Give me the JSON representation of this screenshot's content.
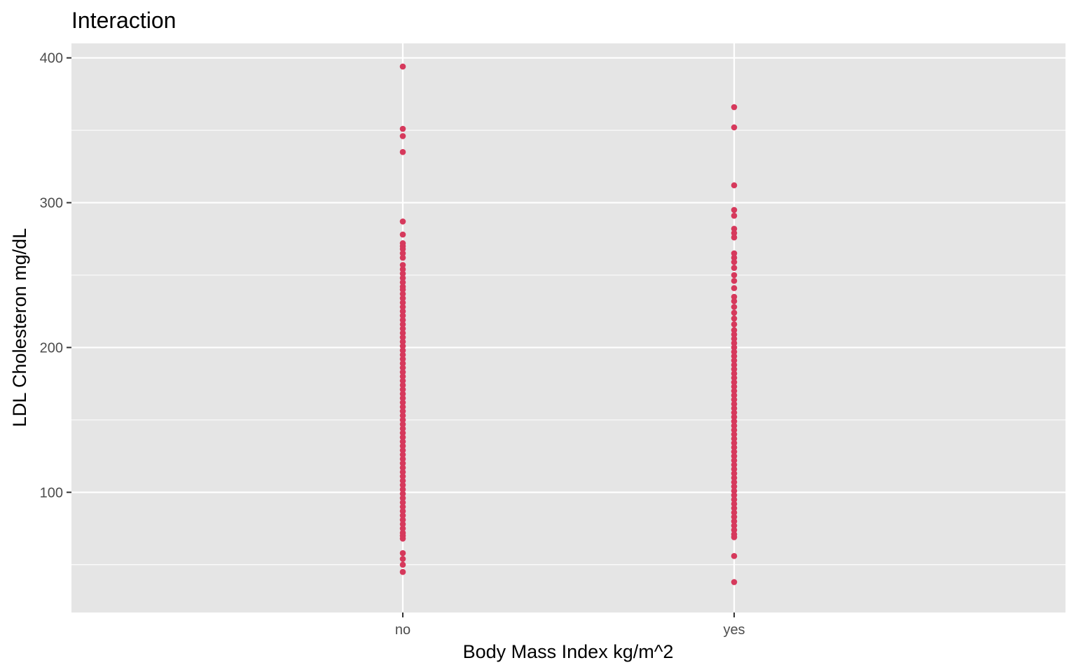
{
  "chart_data": {
    "type": "scatter",
    "title": "Interaction",
    "xlabel": "Body Mass Index kg/m^2",
    "ylabel": "LDL Cholesteron mg/dL",
    "categories": [
      "no",
      "yes"
    ],
    "ylim": [
      17,
      410
    ],
    "yticks": [
      100,
      200,
      300,
      400
    ],
    "grid": true,
    "legend": "none",
    "colors": {
      "point": "#d6395c",
      "panel": "#e5e5e5",
      "grid": "#ffffff",
      "tick_text": "#4d4d4d",
      "text": "#000000"
    },
    "series": [
      {
        "category": "no",
        "values": [
          394,
          351,
          346,
          335,
          287,
          278,
          272,
          270,
          268,
          265,
          262,
          257,
          254,
          251,
          248,
          245,
          242,
          240,
          237,
          234,
          231,
          228,
          225,
          222,
          219,
          216,
          213,
          210,
          207,
          204,
          201,
          198,
          195,
          192,
          189,
          186,
          183,
          180,
          177,
          174,
          171,
          168,
          165,
          162,
          159,
          156,
          153,
          150,
          147,
          144,
          141,
          138,
          135,
          132,
          129,
          126,
          123,
          120,
          117,
          114,
          111,
          108,
          105,
          102,
          99,
          96,
          93,
          90,
          87,
          84,
          81,
          78,
          75,
          72,
          70,
          68,
          58,
          54,
          50,
          45
        ]
      },
      {
        "category": "yes",
        "values": [
          366,
          352,
          312,
          295,
          291,
          282,
          279,
          276,
          265,
          262,
          259,
          255,
          250,
          246,
          241,
          235,
          232,
          228,
          224,
          220,
          216,
          212,
          209,
          206,
          203,
          200,
          197,
          194,
          191,
          188,
          185,
          182,
          179,
          176,
          173,
          170,
          167,
          164,
          161,
          158,
          155,
          152,
          149,
          146,
          143,
          140,
          137,
          134,
          131,
          128,
          125,
          122,
          119,
          116,
          113,
          110,
          107,
          104,
          101,
          98,
          95,
          92,
          89,
          86,
          83,
          80,
          77,
          74,
          71,
          69,
          56,
          38
        ]
      }
    ]
  }
}
